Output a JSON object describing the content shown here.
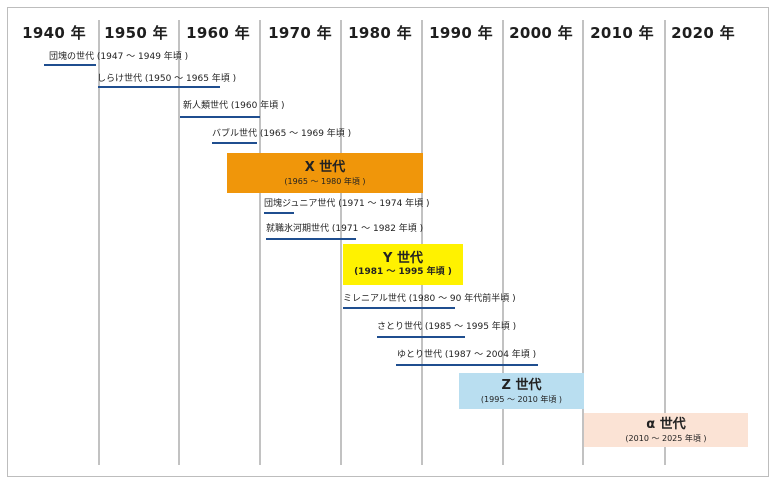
{
  "decades": [
    "1940 年",
    "1950 年",
    "1960 年",
    "1970 年",
    "1980 年",
    "1990 年",
    "2000 年",
    "2010 年",
    "2020 年"
  ],
  "small_generations": [
    {
      "id": "dankai",
      "name": "団塊の世代",
      "range": "(1947 ～ 1949 年頃 )"
    },
    {
      "id": "shirake",
      "name": "しらけ世代",
      "range": "(1950 ～ 1965 年頃 )"
    },
    {
      "id": "shinjinrui",
      "name": "新人類世代",
      "range": "(1960 年頃 )"
    },
    {
      "id": "bubble",
      "name": "バブル世代",
      "range": "(1965 ～ 1969 年頃 )"
    },
    {
      "id": "dankai-junior",
      "name": "団塊ジュニア世代",
      "range": "(1971 ～ 1974 年頃 )"
    },
    {
      "id": "shushoku-hyogaki",
      "name": "就職氷河期世代",
      "range": "(1971 ～ 1982 年頃 )"
    },
    {
      "id": "millennial",
      "name": "ミレニアル世代",
      "range": "(1980 ～ 90 年代前半頃 )"
    },
    {
      "id": "satori",
      "name": "さとり世代",
      "range": "(1985 ～ 1995 年頃 )"
    },
    {
      "id": "yutori",
      "name": "ゆとり世代",
      "range": "(1987 ～ 2004 年頃 )"
    }
  ],
  "major_generations": [
    {
      "id": "x",
      "title": "X 世代",
      "range": "(1965 ～ 1980 年頃 )",
      "color": "#f0960a"
    },
    {
      "id": "y",
      "title": "Y 世代",
      "range": "(1981 ～ 1995 年頃 )",
      "color": "#fff200"
    },
    {
      "id": "z",
      "title": "Z 世代",
      "range": "(1995 ～ 2010 年頃 )",
      "color": "#b9def0"
    },
    {
      "id": "alpha",
      "title": "α 世代",
      "range": "(2010 ～ 2025 年頃 )",
      "color": "#fbe3d5"
    }
  ],
  "colors": {
    "underline": "#1f4e8f",
    "grid": "#c2c2c2"
  }
}
